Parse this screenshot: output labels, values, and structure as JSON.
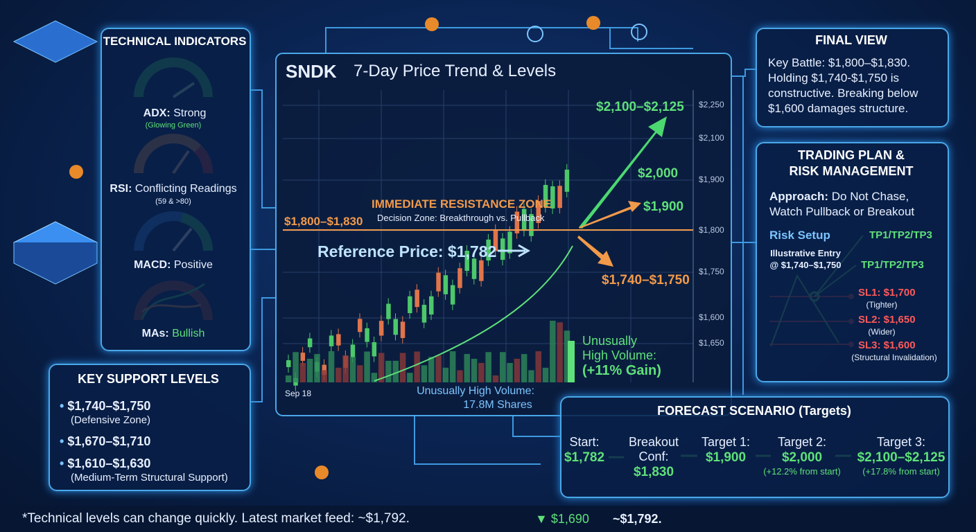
{
  "technical_indicators": {
    "title": "TECHNICAL INDICATORS",
    "items": [
      {
        "label": "ADX:",
        "text": "Strong",
        "note": "(Glowing Green)"
      },
      {
        "label": "RSI:",
        "text": "Conflicting Readings",
        "note": "(59 & >80)"
      },
      {
        "label": "MACD:",
        "text": "Positive"
      },
      {
        "label": "MAs:",
        "text": "Bullish"
      }
    ]
  },
  "support": {
    "title": "KEY SUPPORT LEVELS",
    "items": [
      {
        "level": "$1,740–$1,750",
        "note": "(Defensive Zone)"
      },
      {
        "level": "$1,670–$1,710"
      },
      {
        "level": "$1,610–$1,630",
        "note": "(Medium-Term Structural Support)"
      }
    ]
  },
  "chart": {
    "ticker": "SNDK",
    "title": "7-Day Price Trend & Levels",
    "axis": [
      "$2,250",
      "$2,100",
      "$1,900",
      "$1,800",
      "$1,750",
      "$1,600",
      "$1,650"
    ],
    "x_label": "Sep 18",
    "resistance_title": "IMMEDIATE RESISTANCE ZONE",
    "resistance_sub": "Decision Zone: Breakthrough vs. Pullback",
    "resistance_level": "$1,800–$1,830",
    "reference": "Reference Price: $1,782",
    "targets": [
      "$2,100–$2,125",
      "$2,000",
      "$1,900",
      "$1,740–$1,750"
    ],
    "volume_note": [
      "Unusually",
      "High Volume:",
      "(+11% Gain)"
    ],
    "volume_callout": [
      "Unusually High Volume:",
      "17.8M Shares"
    ]
  },
  "final_view": {
    "title": "FINAL VIEW",
    "text": "Key Battle: $1,800–$1,830. Holding $1,740-$1,750 is constructive. Breaking below $1,600 damages structure."
  },
  "trading_plan": {
    "title": [
      "TRADING PLAN &",
      "RISK MANAGEMENT"
    ],
    "approach_label": "Approach:",
    "approach": "Do Not Chase, Watch Pullback or Breakout",
    "risk_setup": "Risk Setup",
    "entry": [
      "Illustrative Entry",
      "@ $1,740–$1,750"
    ],
    "tp": [
      "TP1/TP2/TP3",
      "TP1/TP2/TP3"
    ],
    "stops": [
      {
        "label": "SL1: $1,700",
        "note": "(Tighter)"
      },
      {
        "label": "SL2: $1,650",
        "note": "(Wider)"
      },
      {
        "label": "SL3: $1,600",
        "note": "(Structural Invalidation)"
      }
    ]
  },
  "forecast": {
    "title": "FORECAST SCENARIO (Targets)",
    "steps": [
      {
        "label": "Start:",
        "value": "$1,782"
      },
      {
        "label": "Breakout Conf:",
        "value": "$1,830"
      },
      {
        "label": "Target 1:",
        "value": "$1,900"
      },
      {
        "label": "Target 2:",
        "value": "$2,000",
        "note": "(+12.2% from start)"
      },
      {
        "label": "Target 3:",
        "value": "$2,100–$2,125",
        "note": "(+17.8% from start)"
      }
    ]
  },
  "footer": {
    "disclaimer": "*Technical levels can change quickly. Latest market feed: ~$1,792.",
    "ticker1": "▼ $1,690",
    "ticker2": "~$1,792."
  }
}
